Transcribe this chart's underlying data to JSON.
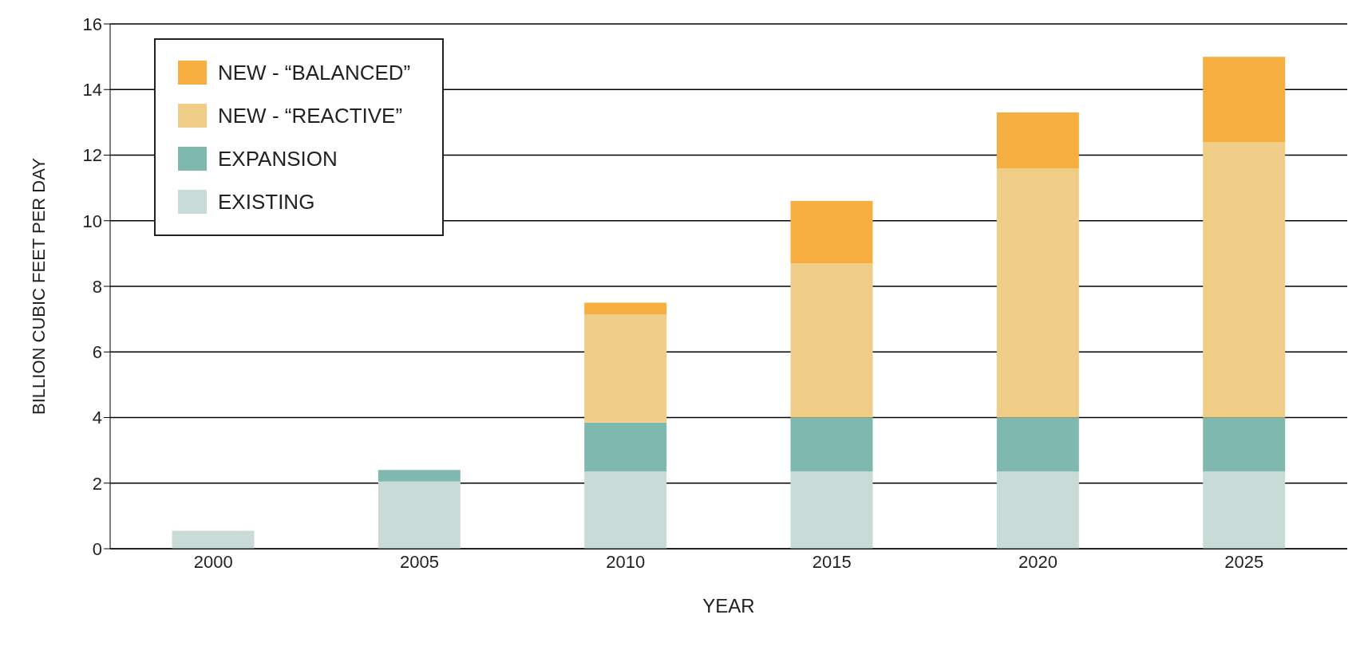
{
  "chart_data": {
    "type": "bar",
    "stacked": true,
    "xlabel": "YEAR",
    "ylabel": "BILLION CUBIC FEET PER DAY",
    "categories": [
      "2000",
      "2005",
      "2010",
      "2015",
      "2020",
      "2025"
    ],
    "series": [
      {
        "name": "EXISTING",
        "color": "#c8dbd6",
        "values": [
          0.55,
          2.05,
          2.35,
          2.35,
          2.35,
          2.35
        ]
      },
      {
        "name": "EXPANSION",
        "color": "#7fb8ae",
        "values": [
          null,
          0.35,
          1.5,
          1.65,
          1.65,
          1.65
        ]
      },
      {
        "name": "NEW - “REACTIVE”",
        "color": "#f0cd87",
        "values": [
          null,
          null,
          3.3,
          4.7,
          7.6,
          8.4
        ]
      },
      {
        "name": "NEW - “BALANCED”",
        "color": "#f5ae3f",
        "values": [
          null,
          null,
          0.35,
          1.9,
          1.7,
          2.6
        ]
      }
    ],
    "ylim": [
      0,
      16
    ],
    "yticks": [
      0,
      2,
      4,
      6,
      8,
      10,
      12,
      14,
      16
    ],
    "grid": "y",
    "legend": "top left"
  }
}
